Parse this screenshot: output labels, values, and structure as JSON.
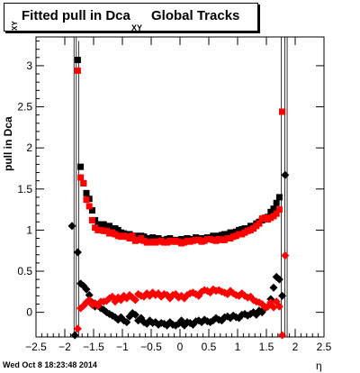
{
  "title": {
    "main": "Fitted pull in Dca",
    "sub": "XY",
    "tail": "Global Tracks"
  },
  "ylabel": {
    "main": "pull in Dca",
    "sub": "XY"
  },
  "xlabel": "η",
  "timestamp": "Wed Oct  8 18:23:48 2014",
  "colors": {
    "series_black": "#000000",
    "series_red": "#ff0000",
    "frame": "#000000"
  },
  "chart_data": {
    "type": "scatter",
    "title": "Fitted pull in Dca XY Global Tracks",
    "xlabel": "η",
    "ylabel": "pull in Dca XY",
    "xlim": [
      -2.5,
      2.5
    ],
    "ylim": [
      -0.3,
      3.35
    ],
    "x_ticks": [
      -2.5,
      -2,
      -1.5,
      -1,
      -0.5,
      0,
      0.5,
      1,
      1.5,
      2,
      2.5
    ],
    "x_tick_labels": [
      "−2.5",
      "−2",
      "−1.5",
      "−1",
      "−0.5",
      "0",
      "0.5",
      "1",
      "1.5",
      "2",
      "2.5"
    ],
    "y_ticks": [
      0,
      0.5,
      1,
      1.5,
      2,
      2.5,
      3
    ],
    "y_tick_labels": [
      "0",
      "0.5",
      "1",
      "1.5",
      "2",
      "2.5",
      "3"
    ],
    "series": [
      {
        "marker": "square",
        "color": "#000000",
        "x": [
          -1.775,
          -1.725,
          -1.675,
          -1.625,
          -1.575,
          -1.525,
          -1.475,
          -1.425,
          -1.375,
          -1.325,
          -1.275,
          -1.225,
          -1.175,
          -1.125,
          -1.075,
          -1.025,
          -0.975,
          -0.925,
          -0.875,
          -0.825,
          -0.775,
          -0.725,
          -0.675,
          -0.625,
          -0.575,
          -0.525,
          -0.475,
          -0.425,
          -0.375,
          -0.325,
          -0.275,
          -0.225,
          -0.175,
          -0.125,
          -0.075,
          -0.025,
          0.025,
          0.075,
          0.125,
          0.175,
          0.225,
          0.275,
          0.325,
          0.375,
          0.425,
          0.475,
          0.525,
          0.575,
          0.625,
          0.675,
          0.725,
          0.775,
          0.825,
          0.875,
          0.925,
          0.975,
          1.025,
          1.075,
          1.125,
          1.175,
          1.225,
          1.275,
          1.325,
          1.375,
          1.425,
          1.475,
          1.525,
          1.575,
          1.625,
          1.675,
          1.725,
          1.775
        ],
        "y": [
          3.07,
          1.77,
          1.57,
          1.45,
          1.38,
          1.24,
          1.12,
          1.07,
          1.05,
          1.07,
          1.04,
          1.05,
          1.02,
          1.02,
          1.0,
          0.97,
          0.96,
          0.94,
          0.95,
          0.93,
          0.93,
          0.91,
          0.93,
          0.92,
          0.9,
          0.9,
          0.91,
          0.89,
          0.9,
          0.88,
          0.87,
          0.89,
          0.9,
          0.88,
          0.86,
          0.88,
          0.89,
          0.88,
          0.9,
          0.89,
          0.88,
          0.91,
          0.9,
          0.89,
          0.9,
          0.91,
          0.9,
          0.93,
          0.92,
          0.93,
          0.94,
          0.95,
          0.95,
          0.97,
          0.97,
          0.98,
          1.0,
          1.01,
          1.02,
          1.02,
          1.05,
          1.05,
          1.08,
          1.1,
          1.12,
          1.15,
          1.16,
          1.22,
          1.26,
          1.33,
          1.4,
          2.44
        ]
      },
      {
        "marker": "square",
        "color": "#ff0000",
        "x": [
          -1.775,
          -1.725,
          -1.675,
          -1.625,
          -1.575,
          -1.525,
          -1.475,
          -1.425,
          -1.375,
          -1.325,
          -1.275,
          -1.225,
          -1.175,
          -1.125,
          -1.075,
          -1.025,
          -0.975,
          -0.925,
          -0.875,
          -0.825,
          -0.775,
          -0.725,
          -0.675,
          -0.625,
          -0.575,
          -0.525,
          -0.475,
          -0.425,
          -0.375,
          -0.325,
          -0.275,
          -0.225,
          -0.175,
          -0.125,
          -0.075,
          -0.025,
          0.025,
          0.075,
          0.125,
          0.175,
          0.225,
          0.275,
          0.325,
          0.375,
          0.425,
          0.475,
          0.525,
          0.575,
          0.625,
          0.675,
          0.725,
          0.775,
          0.825,
          0.875,
          0.925,
          0.975,
          1.025,
          1.075,
          1.125,
          1.175,
          1.225,
          1.275,
          1.325,
          1.375,
          1.425,
          1.475,
          1.525,
          1.575,
          1.625,
          1.675,
          1.725,
          1.775
        ],
        "y": [
          2.94,
          1.64,
          1.57,
          1.37,
          1.29,
          1.12,
          1.03,
          1.0,
          1.0,
          0.99,
          0.99,
          0.96,
          0.97,
          0.95,
          0.93,
          0.92,
          0.93,
          0.92,
          0.9,
          0.93,
          0.87,
          0.88,
          0.9,
          0.87,
          0.85,
          0.85,
          0.86,
          0.85,
          0.86,
          0.87,
          0.85,
          0.85,
          0.87,
          0.86,
          0.87,
          0.86,
          0.84,
          0.85,
          0.87,
          0.86,
          0.87,
          0.88,
          0.88,
          0.86,
          0.87,
          0.89,
          0.89,
          0.88,
          0.87,
          0.89,
          0.88,
          0.88,
          0.9,
          0.9,
          0.92,
          0.93,
          0.95,
          0.95,
          0.97,
          0.99,
          1.0,
          1.02,
          1.05,
          1.08,
          1.14,
          1.15,
          1.13,
          1.15,
          1.17,
          1.2,
          1.25,
          2.44
        ]
      },
      {
        "marker": "diamond",
        "color": "#000000",
        "x": [
          -1.875,
          -1.825,
          -1.775,
          -1.725,
          -1.675,
          -1.625,
          -1.575,
          -1.525,
          -1.475,
          -1.425,
          -1.375,
          -1.325,
          -1.275,
          -1.225,
          -1.175,
          -1.125,
          -1.075,
          -1.025,
          -0.975,
          -0.925,
          -0.875,
          -0.825,
          -0.775,
          -0.725,
          -0.675,
          -0.625,
          -0.575,
          -0.525,
          -0.475,
          -0.425,
          -0.375,
          -0.325,
          -0.275,
          -0.225,
          -0.175,
          -0.125,
          -0.075,
          -0.025,
          0.025,
          0.075,
          0.125,
          0.175,
          0.225,
          0.275,
          0.325,
          0.375,
          0.425,
          0.475,
          0.525,
          0.575,
          0.625,
          0.675,
          0.725,
          0.775,
          0.825,
          0.875,
          0.925,
          0.975,
          1.025,
          1.075,
          1.125,
          1.175,
          1.225,
          1.275,
          1.325,
          1.375,
          1.425,
          1.475,
          1.525,
          1.575,
          1.625,
          1.675,
          1.725,
          1.775,
          1.825
        ],
        "y": [
          1.05,
          -0.28,
          0.73,
          0.35,
          0.32,
          0.28,
          0.21,
          0.12,
          0.07,
          0.08,
          0.05,
          0.03,
          0.0,
          -0.02,
          -0.04,
          -0.06,
          -0.09,
          -0.06,
          -0.1,
          -0.12,
          -0.05,
          -0.01,
          -0.03,
          -0.1,
          -0.07,
          -0.12,
          -0.14,
          -0.1,
          -0.13,
          -0.12,
          -0.15,
          -0.13,
          -0.14,
          -0.16,
          -0.12,
          -0.15,
          -0.16,
          -0.14,
          -0.1,
          -0.16,
          -0.12,
          -0.13,
          -0.15,
          -0.11,
          -0.1,
          -0.12,
          -0.09,
          -0.11,
          -0.12,
          -0.1,
          -0.07,
          -0.09,
          -0.1,
          -0.06,
          -0.05,
          -0.07,
          -0.04,
          -0.06,
          -0.07,
          -0.03,
          -0.02,
          -0.04,
          -0.02,
          0.0,
          -0.03,
          0.02,
          0.0,
          0.05,
          0.07,
          0.16,
          0.3,
          0.43,
          0.4,
          0.2,
          1.67
        ]
      },
      {
        "marker": "diamond",
        "color": "#ff0000",
        "x": [
          -1.775,
          -1.725,
          -1.675,
          -1.625,
          -1.575,
          -1.525,
          -1.475,
          -1.425,
          -1.375,
          -1.325,
          -1.275,
          -1.225,
          -1.175,
          -1.125,
          -1.075,
          -1.025,
          -0.975,
          -0.925,
          -0.875,
          -0.825,
          -0.775,
          -0.725,
          -0.675,
          -0.625,
          -0.575,
          -0.525,
          -0.475,
          -0.425,
          -0.375,
          -0.325,
          -0.275,
          -0.225,
          -0.175,
          -0.125,
          -0.075,
          -0.025,
          0.025,
          0.075,
          0.125,
          0.175,
          0.225,
          0.275,
          0.325,
          0.375,
          0.425,
          0.475,
          0.525,
          0.575,
          0.625,
          0.675,
          0.725,
          0.775,
          0.825,
          0.875,
          0.925,
          0.975,
          1.025,
          1.075,
          1.125,
          1.175,
          1.225,
          1.275,
          1.325,
          1.375,
          1.425,
          1.475,
          1.525,
          1.575,
          1.625,
          1.675,
          1.725,
          1.775,
          1.825
        ],
        "y": [
          -0.2,
          0.05,
          0.08,
          0.12,
          0.15,
          0.09,
          0.11,
          0.08,
          0.13,
          0.13,
          0.14,
          0.17,
          0.19,
          0.13,
          0.18,
          0.15,
          0.2,
          0.17,
          0.21,
          0.18,
          0.15,
          0.22,
          0.2,
          0.19,
          0.23,
          0.2,
          0.24,
          0.21,
          0.23,
          0.19,
          0.22,
          0.21,
          0.17,
          0.21,
          0.22,
          0.18,
          0.2,
          0.17,
          0.21,
          0.23,
          0.24,
          0.22,
          0.2,
          0.25,
          0.27,
          0.26,
          0.24,
          0.28,
          0.26,
          0.27,
          0.25,
          0.24,
          0.22,
          0.26,
          0.23,
          0.21,
          0.2,
          0.23,
          0.2,
          0.18,
          0.19,
          0.15,
          0.13,
          0.12,
          0.1,
          0.06,
          0.07,
          0.12,
          0.06,
          0.13,
          0.07,
          -0.28,
          0.69
        ]
      }
    ]
  }
}
